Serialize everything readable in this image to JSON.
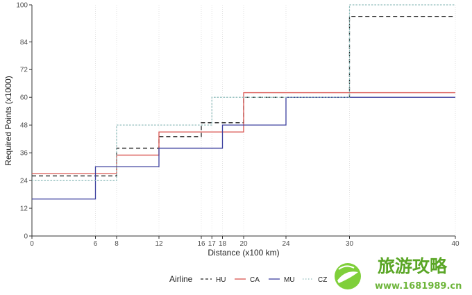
{
  "chart_data": {
    "type": "line",
    "step": "post",
    "xlabel": "Distance (x100 km)",
    "ylabel": "Required Points (x1000)",
    "xlim": [
      0,
      40
    ],
    "ylim": [
      0,
      100
    ],
    "x_ticks": [
      0,
      6,
      8,
      12,
      16,
      17,
      18,
      20,
      24,
      30,
      40
    ],
    "y_ticks": [
      0,
      12,
      24,
      36,
      48,
      60,
      72,
      84,
      100
    ],
    "grid": "vertical dotted lines at x ticks",
    "legend": {
      "title": "Airline",
      "placement": "bottom"
    },
    "series": [
      {
        "name": "HU",
        "color": "#222222",
        "dash": "dashed",
        "x": [
          0,
          8,
          12,
          16,
          20,
          30,
          40
        ],
        "y": [
          26,
          38,
          43,
          49,
          60,
          95,
          95
        ]
      },
      {
        "name": "CA",
        "color": "#d9534f",
        "dash": "solid",
        "x": [
          0,
          8,
          12,
          20,
          40
        ],
        "y": [
          27,
          35,
          45,
          62,
          62
        ]
      },
      {
        "name": "MU",
        "color": "#3b3f9e",
        "dash": "solid",
        "x": [
          0,
          6,
          12,
          18,
          24,
          40
        ],
        "y": [
          16,
          30,
          38,
          48,
          60,
          60
        ]
      },
      {
        "name": "CZ",
        "color": "#8fbcbb",
        "dash": "dotted",
        "x": [
          0,
          8,
          17,
          30,
          40
        ],
        "y": [
          24,
          48,
          60,
          100,
          100
        ]
      }
    ]
  },
  "watermark": {
    "title": "旅游攻略",
    "url": "www.1681989.cn"
  }
}
